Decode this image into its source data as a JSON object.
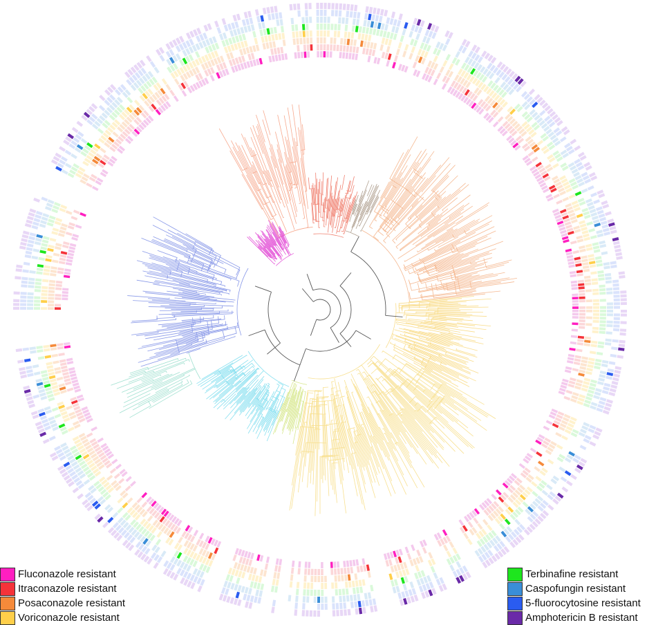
{
  "legend_left": [
    {
      "label": "Fluconazole resistant",
      "color": "#ff1fc0"
    },
    {
      "label": "Itraconazole resistant",
      "color": "#f5333a"
    },
    {
      "label": "Posaconazole resistant",
      "color": "#f58a3a"
    },
    {
      "label": "Voriconazole resistant",
      "color": "#ffcf4a"
    }
  ],
  "legend_right": [
    {
      "label": "Terbinafine resistant",
      "color": "#1ee61e"
    },
    {
      "label": "Caspofungin resistant",
      "color": "#3a8ed8"
    },
    {
      "label": "5-fluorocytosine resistant",
      "color": "#2a5cf0"
    },
    {
      "label": "Amphotericin B resistant",
      "color": "#6a2aa8"
    }
  ],
  "rings": [
    {
      "name": "Fluconazole",
      "light": "#f2c0ea",
      "dark": "#ff1fc0"
    },
    {
      "name": "Itraconazole",
      "light": "#fbd0d2",
      "dark": "#f5333a"
    },
    {
      "name": "Posaconazole",
      "light": "#fde0c8",
      "dark": "#f58a3a"
    },
    {
      "name": "Voriconazole",
      "light": "#fff0c4",
      "dark": "#ffcf4a"
    },
    {
      "name": "Terbinafine",
      "light": "#d4f8d4",
      "dark": "#1ee61e"
    },
    {
      "name": "Caspofungin",
      "light": "#d2e6f6",
      "dark": "#3a8ed8"
    },
    {
      "name": "5-fluorocytosine",
      "light": "#d4defc",
      "dark": "#2a5cf0"
    },
    {
      "name": "Amphotericin B",
      "light": "#e4d0f4",
      "dark": "#6a2aa8"
    }
  ],
  "clades": [
    {
      "color": "#f7a98e"
    },
    {
      "color": "#f08070"
    },
    {
      "color": "#e458d8"
    },
    {
      "color": "#b0a090"
    },
    {
      "color": "#f5b890"
    },
    {
      "color": "#f9dc8a"
    },
    {
      "color": "#f8e090"
    },
    {
      "color": "#d8e890"
    },
    {
      "color": "#88e0f0"
    },
    {
      "color": "#a0e0d0"
    },
    {
      "color": "#8898e8"
    }
  ],
  "ring_gaps": [
    {
      "start": 292,
      "end": 298
    },
    {
      "start": 263,
      "end": 270
    },
    {
      "start": 242,
      "end": 244
    },
    {
      "start": 199,
      "end": 203
    },
    {
      "start": 186,
      "end": 188
    },
    {
      "start": 165,
      "end": 169
    },
    {
      "start": 148,
      "end": 150
    },
    {
      "start": 110,
      "end": 113
    }
  ],
  "tree_root_color": "#555555"
}
